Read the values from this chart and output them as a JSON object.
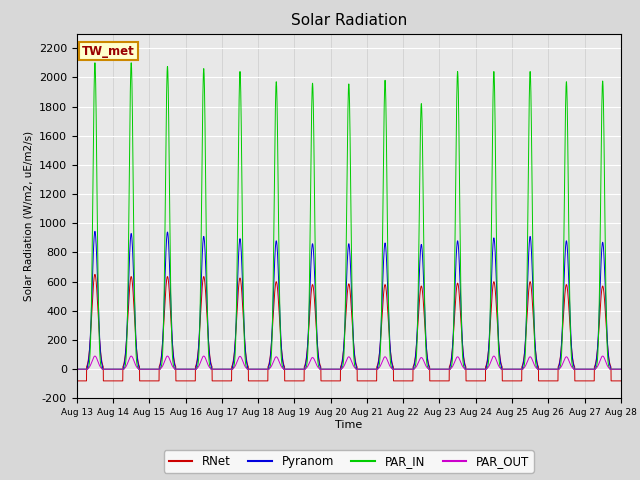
{
  "title": "Solar Radiation",
  "ylabel": "Solar Radiation (W/m2, uE/m2/s)",
  "xlabel": "Time",
  "ylim": [
    -200,
    2300
  ],
  "yticks": [
    -200,
    0,
    200,
    400,
    600,
    800,
    1000,
    1200,
    1400,
    1600,
    1800,
    2000,
    2200
  ],
  "n_days": 15,
  "station_label": "TW_met",
  "colors": {
    "RNet": "#cc0000",
    "Pyranom": "#0000dd",
    "PAR_IN": "#00cc00",
    "PAR_OUT": "#cc00cc"
  },
  "bg_color": "#e8e8e8",
  "fig_bg_color": "#d8d8d8",
  "par_in_peaks": [
    2100,
    2100,
    2075,
    2060,
    2040,
    1970,
    1960,
    1955,
    1980,
    1820,
    2040,
    2040,
    2040,
    1970,
    1975
  ],
  "pyra_peaks": [
    945,
    930,
    940,
    910,
    895,
    880,
    860,
    860,
    865,
    855,
    880,
    900,
    910,
    880,
    870
  ],
  "rnet_peaks": [
    650,
    635,
    635,
    635,
    625,
    600,
    580,
    585,
    580,
    570,
    590,
    600,
    600,
    580,
    570
  ],
  "par_out_peaks": [
    90,
    90,
    90,
    90,
    88,
    85,
    80,
    85,
    85,
    80,
    85,
    90,
    85,
    85,
    90
  ]
}
